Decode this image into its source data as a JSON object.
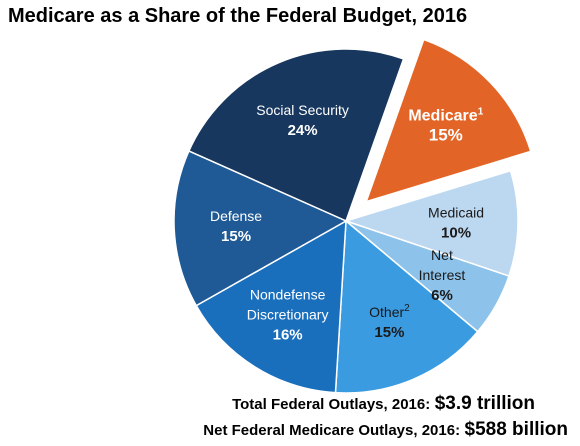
{
  "chart_data": {
    "type": "pie",
    "title": "Medicare as a Share of the Federal Budget, 2016",
    "slices": [
      {
        "label_lines": [
          "Social Security"
        ],
        "value_label": "24%",
        "value": 24,
        "color": "#17375e",
        "text_color": "#ffffff",
        "exploded": false,
        "superscript": ""
      },
      {
        "label_lines": [
          "Medicare"
        ],
        "value_label": "15%",
        "value": 15,
        "color": "#e26527",
        "text_color": "#ffffff",
        "exploded": true,
        "superscript": "1"
      },
      {
        "label_lines": [
          "Medicaid"
        ],
        "value_label": "10%",
        "value": 10,
        "color": "#bcd7f0",
        "text_color": "#1a1a1a",
        "exploded": false,
        "superscript": ""
      },
      {
        "label_lines": [
          "Net",
          "Interest"
        ],
        "value_label": "6%",
        "value": 6,
        "color": "#8dc3ea",
        "text_color": "#1a1a1a",
        "exploded": false,
        "superscript": ""
      },
      {
        "label_lines": [
          "Other"
        ],
        "value_label": "15%",
        "value": 15,
        "color": "#3b9be0",
        "text_color": "#1a1a1a",
        "exploded": false,
        "superscript": "2"
      },
      {
        "label_lines": [
          "Nondefense",
          "Discretionary"
        ],
        "value_label": "16%",
        "value": 16,
        "color": "#1a6fbd",
        "text_color": "#ffffff",
        "exploded": false,
        "superscript": ""
      },
      {
        "label_lines": [
          "Defense"
        ],
        "value_label": "15%",
        "value": 15,
        "color": "#1f5a96",
        "text_color": "#ffffff",
        "exploded": false,
        "superscript": ""
      }
    ]
  },
  "footer": {
    "line1_label": "Total Federal Outlays, 2016:",
    "line1_value": "$3.9 trillion",
    "line2_label": "Net Federal Medicare Outlays, 2016:",
    "line2_value": "$588 billion"
  }
}
